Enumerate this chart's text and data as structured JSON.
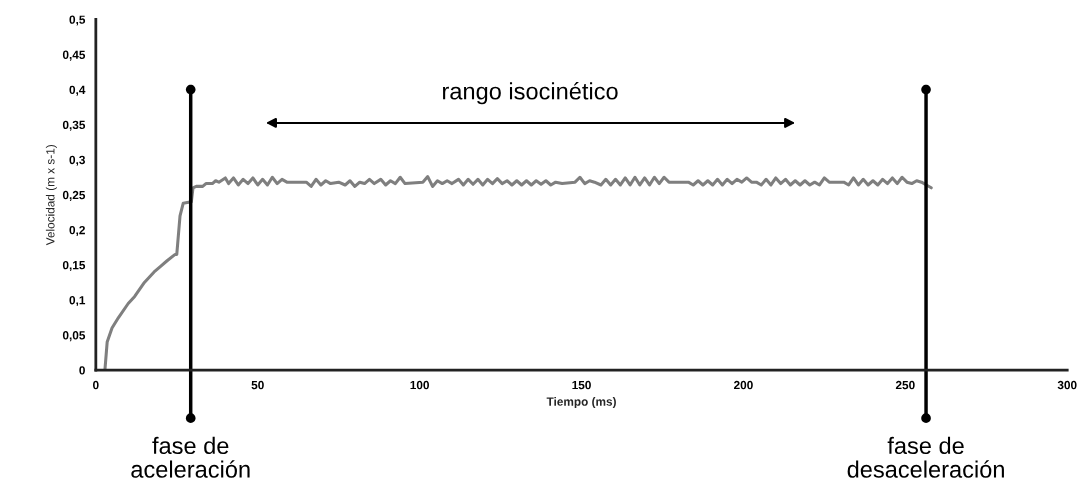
{
  "chart_data": {
    "type": "line",
    "xlabel": "Tiempo (ms)",
    "ylabel": "Velocidad (m x s-1)",
    "xlim": [
      0,
      300
    ],
    "xticks": [
      0,
      50,
      100,
      150,
      200,
      250,
      300
    ],
    "ylim": [
      0,
      0.5
    ],
    "yticks": [
      0,
      {
        "value": 0.05,
        "label": "0,05"
      },
      {
        "value": 0.1,
        "label": "0,1"
      },
      {
        "value": 0.15,
        "label": "0,15"
      },
      {
        "value": 0.2,
        "label": "0,2"
      },
      {
        "value": 0.25,
        "label": "0,25"
      },
      {
        "value": 0.3,
        "label": "0,3"
      },
      {
        "value": 0.35,
        "label": "0,35"
      },
      {
        "value": 0.4,
        "label": "0,4"
      },
      {
        "value": 0.45,
        "label": "0,45"
      },
      {
        "value": 0.5,
        "label": "0,5"
      }
    ],
    "grid": false,
    "legend": false,
    "marker": "none",
    "line_style": "solid",
    "series": [
      {
        "color": "#7f7f7f",
        "x": [
          2.8,
          3.5,
          5,
          7,
          10,
          12,
          15,
          18,
          20,
          22,
          24.5,
          25,
          26,
          27,
          29.5,
          30,
          31,
          33,
          34,
          36,
          37,
          38,
          40,
          41,
          42.5,
          44,
          45.5,
          47,
          48.5,
          50,
          51.5,
          53,
          54.5,
          56,
          57.5,
          59,
          65,
          66.5,
          68,
          69.5,
          71,
          72.5,
          75,
          77,
          78.5,
          80,
          81.5,
          83,
          84.5,
          86,
          88,
          89.5,
          91,
          92.5,
          94,
          95.5,
          101,
          102.5,
          104,
          105.5,
          107,
          108.5,
          110,
          112,
          113.5,
          115,
          116.5,
          118,
          119.5,
          121,
          122.5,
          124,
          125.5,
          127,
          128.5,
          130,
          131.5,
          133,
          134.5,
          136,
          137.5,
          139,
          140.5,
          142,
          144,
          148,
          149.5,
          151,
          152.5,
          154,
          156,
          157.5,
          159,
          160.5,
          162,
          163.5,
          165,
          166.5,
          168,
          169.5,
          171,
          172.5,
          174,
          175.5,
          177,
          183,
          184.5,
          186,
          187.5,
          189,
          190.5,
          192,
          193.5,
          195,
          196.5,
          198,
          199.5,
          201,
          202.5,
          204,
          205.5,
          207,
          208.5,
          210,
          211.5,
          213,
          214.5,
          216,
          217.5,
          219,
          220.5,
          222,
          223.5,
          225,
          226.5,
          231,
          232.5,
          234,
          235.5,
          237,
          238.5,
          240,
          241.5,
          243,
          244.5,
          246,
          247.5,
          249,
          250.5,
          252,
          253.5,
          255,
          256.5,
          258
        ],
        "values": [
          0,
          0.04,
          0.06,
          0.075,
          0.095,
          0.105,
          0.125,
          0.14,
          0.148,
          0.156,
          0.165,
          0.165,
          0.22,
          0.238,
          0.24,
          0.26,
          0.262,
          0.262,
          0.266,
          0.266,
          0.27,
          0.268,
          0.274,
          0.266,
          0.274,
          0.264,
          0.272,
          0.266,
          0.274,
          0.264,
          0.272,
          0.264,
          0.275,
          0.266,
          0.272,
          0.268,
          0.268,
          0.262,
          0.272,
          0.264,
          0.27,
          0.266,
          0.268,
          0.264,
          0.27,
          0.262,
          0.268,
          0.266,
          0.272,
          0.266,
          0.272,
          0.264,
          0.27,
          0.266,
          0.275,
          0.266,
          0.268,
          0.276,
          0.262,
          0.27,
          0.266,
          0.27,
          0.266,
          0.272,
          0.264,
          0.272,
          0.265,
          0.272,
          0.264,
          0.272,
          0.266,
          0.273,
          0.266,
          0.27,
          0.264,
          0.27,
          0.264,
          0.27,
          0.264,
          0.27,
          0.265,
          0.27,
          0.264,
          0.268,
          0.266,
          0.268,
          0.275,
          0.266,
          0.27,
          0.268,
          0.264,
          0.272,
          0.264,
          0.272,
          0.264,
          0.274,
          0.264,
          0.275,
          0.264,
          0.274,
          0.264,
          0.275,
          0.266,
          0.275,
          0.268,
          0.268,
          0.264,
          0.27,
          0.264,
          0.27,
          0.264,
          0.272,
          0.264,
          0.272,
          0.266,
          0.272,
          0.268,
          0.274,
          0.268,
          0.268,
          0.264,
          0.272,
          0.264,
          0.274,
          0.266,
          0.272,
          0.264,
          0.27,
          0.264,
          0.27,
          0.264,
          0.268,
          0.264,
          0.274,
          0.268,
          0.268,
          0.264,
          0.274,
          0.264,
          0.272,
          0.264,
          0.27,
          0.264,
          0.272,
          0.266,
          0.274,
          0.266,
          0.275,
          0.268,
          0.266,
          0.27,
          0.268,
          0.264,
          0.26
        ]
      }
    ],
    "ref_lines": [
      {
        "axis": "x",
        "value": 29.3,
        "label": "fase de\naceleración",
        "color": "#000000"
      },
      {
        "axis": "x",
        "value": 256.4,
        "label": "fase de\ndesaceleración",
        "color": "#000000"
      }
    ],
    "annotations": [
      "rango isocinético"
    ]
  }
}
